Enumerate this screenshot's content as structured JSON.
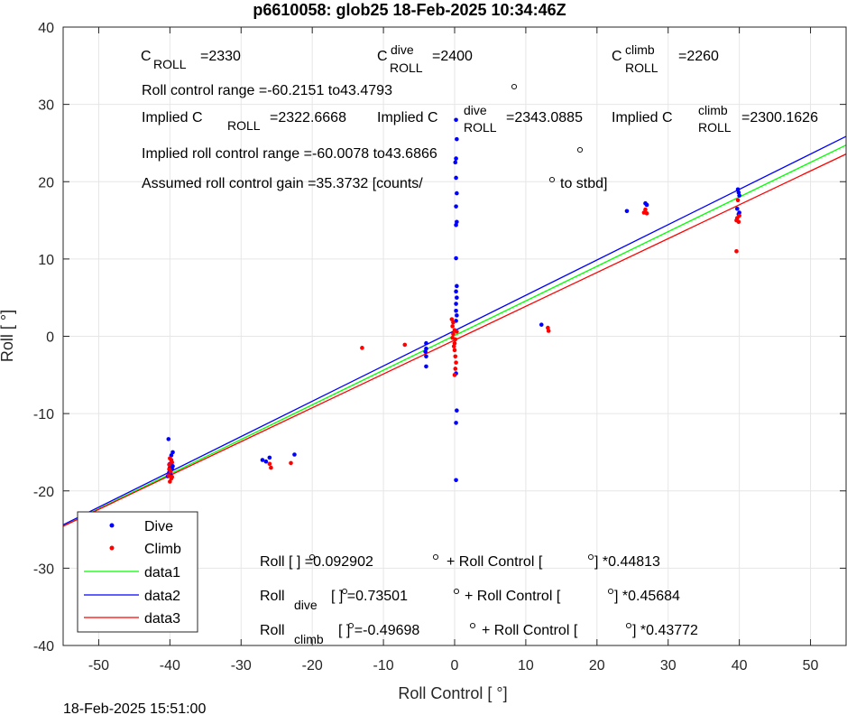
{
  "chart_data": {
    "type": "scatter",
    "title": "p6610058: glob25 18-Feb-2025 10:34:46Z",
    "xlabel": "Roll Control [   °]",
    "ylabel": "Roll [  °]",
    "xlim": [
      -55,
      55
    ],
    "ylim": [
      -40,
      40
    ],
    "xticks": [
      -50,
      -40,
      -30,
      -20,
      -10,
      0,
      10,
      20,
      30,
      40,
      50
    ],
    "yticks": [
      -40,
      -30,
      -20,
      -10,
      0,
      10,
      20,
      30,
      40
    ],
    "grid": true,
    "timestamp": "18-Feb-2025 15:51:00",
    "legend": {
      "placement": "bottom-left",
      "entries": [
        "Dive",
        "Climb",
        "data1",
        "data2",
        "data3"
      ]
    },
    "colors": {
      "dive": "#0000ff",
      "climb": "#ff0000",
      "data1": "#00ff00",
      "data2": "#0000ff",
      "data3": "#ff0000"
    },
    "series": [
      {
        "name": "Dive",
        "kind": "points",
        "color": "#0000ff",
        "points": [
          [
            -40.2,
            -13.3
          ],
          [
            -39.8,
            -15.4
          ],
          [
            -39.6,
            -15.0
          ],
          [
            -40.0,
            -16.5
          ],
          [
            -39.7,
            -17.2
          ],
          [
            -40.1,
            -17.6
          ],
          [
            -39.9,
            -17.9
          ],
          [
            -40.3,
            -18.1
          ],
          [
            -39.6,
            -16.8
          ],
          [
            -40.0,
            -17.0
          ],
          [
            -27.0,
            -16.0
          ],
          [
            -26.5,
            -16.2
          ],
          [
            -26.0,
            -15.7
          ],
          [
            -22.5,
            -15.3
          ],
          [
            -4.0,
            -0.9
          ],
          [
            -4.0,
            -1.6
          ],
          [
            -4.1,
            -2.0
          ],
          [
            -4.0,
            -2.6
          ],
          [
            -4.0,
            -3.9
          ],
          [
            0.2,
            28.0
          ],
          [
            0.3,
            25.5
          ],
          [
            0.2,
            23.0
          ],
          [
            0.1,
            22.5
          ],
          [
            0.2,
            20.5
          ],
          [
            0.3,
            18.5
          ],
          [
            0.2,
            16.8
          ],
          [
            0.3,
            14.8
          ],
          [
            0.2,
            14.4
          ],
          [
            0.2,
            10.1
          ],
          [
            0.3,
            6.5
          ],
          [
            0.2,
            5.8
          ],
          [
            0.3,
            5.0
          ],
          [
            0.2,
            4.2
          ],
          [
            0.2,
            3.3
          ],
          [
            0.3,
            2.7
          ],
          [
            0.2,
            2.0
          ],
          [
            0.2,
            -4.8
          ],
          [
            0.3,
            -9.6
          ],
          [
            0.2,
            -11.2
          ],
          [
            0.2,
            -18.6
          ],
          [
            12.2,
            1.5
          ],
          [
            24.2,
            16.2
          ],
          [
            26.8,
            17.2
          ],
          [
            27.0,
            17.0
          ],
          [
            39.8,
            19.0
          ],
          [
            39.9,
            18.6
          ],
          [
            40.0,
            18.2
          ],
          [
            39.7,
            16.5
          ],
          [
            40.0,
            16.0
          ],
          [
            39.9,
            15.8
          ]
        ]
      },
      {
        "name": "Climb",
        "kind": "points",
        "color": "#ff0000",
        "points": [
          [
            -40.0,
            -15.8
          ],
          [
            -39.8,
            -16.0
          ],
          [
            -39.7,
            -16.3
          ],
          [
            -40.1,
            -16.6
          ],
          [
            -39.9,
            -17.5
          ],
          [
            -40.2,
            -18.0
          ],
          [
            -39.8,
            -18.4
          ],
          [
            -40.0,
            -18.8
          ],
          [
            -39.7,
            -18.2
          ],
          [
            -40.1,
            -17.2
          ],
          [
            -26.0,
            -16.5
          ],
          [
            -25.8,
            -17.0
          ],
          [
            -23.0,
            -16.4
          ],
          [
            -13.0,
            -1.5
          ],
          [
            -7.0,
            -1.1
          ],
          [
            -0.4,
            2.2
          ],
          [
            -0.2,
            1.8
          ],
          [
            -0.3,
            1.3
          ],
          [
            0.0,
            0.8
          ],
          [
            -0.2,
            0.3
          ],
          [
            0.1,
            -0.4
          ],
          [
            0.0,
            -0.9
          ],
          [
            -0.1,
            -1.3
          ],
          [
            0.0,
            -1.8
          ],
          [
            0.1,
            -2.6
          ],
          [
            0.2,
            -3.4
          ],
          [
            0.1,
            -4.2
          ],
          [
            0.0,
            -5.0
          ],
          [
            -0.3,
            -0.2
          ],
          [
            0.3,
            0.6
          ],
          [
            13.2,
            0.7
          ],
          [
            13.1,
            1.1
          ],
          [
            26.6,
            16.0
          ],
          [
            27.0,
            15.9
          ],
          [
            26.8,
            16.4
          ],
          [
            39.6,
            15.0
          ],
          [
            39.9,
            14.8
          ],
          [
            39.7,
            15.3
          ],
          [
            40.0,
            15.6
          ],
          [
            39.8,
            17.6
          ],
          [
            39.6,
            11.0
          ]
        ]
      },
      {
        "name": "data1",
        "kind": "line",
        "color": "#00ff00",
        "intercept": 0.092902,
        "slope": 0.44813
      },
      {
        "name": "data2",
        "kind": "line",
        "color": "#0000ff",
        "intercept": 0.73501,
        "slope": 0.45684
      },
      {
        "name": "data3",
        "kind": "line",
        "color": "#ff0000",
        "intercept": -0.49698,
        "slope": 0.43772
      }
    ],
    "annotations": {
      "c_roll_base": "C",
      "c_roll_sub": "ROLL",
      "c_roll_val": "=2330",
      "c_dive_base": "C",
      "c_dive_sup": "dive",
      "c_dive_sub": "ROLL",
      "c_dive_val": "=2400",
      "c_climb_base": "C",
      "c_climb_sup": "climb",
      "c_climb_sub": "ROLL",
      "c_climb_val": "=2260",
      "range": "Roll control range =-60.2151 to43.4793",
      "implied_a": "Implied C",
      "implied_a_sub": "ROLL",
      "implied_a_val": "=2322.6668",
      "implied_b": "Implied C",
      "implied_b_sup": "dive",
      "implied_b_sub": "ROLL",
      "implied_b_val": "=2343.0885",
      "implied_c": "Implied C",
      "implied_c_sup": "climb",
      "implied_c_sub": "ROLL",
      "implied_c_val": "=2300.1626",
      "implied_range": "Implied roll control range =-60.0078 to43.6866",
      "gain_a": "Assumed roll control gain =35.3732 [counts/",
      "gain_b": "to stbd]",
      "eq1_a": "Roll [  ] =0.092902",
      "eq1_b": "+ Roll Control [",
      "eq1_c": "] *0.44813",
      "eq2_base": "Roll",
      "eq2_sub": "dive",
      "eq2_a": "[  ] =0.73501",
      "eq2_b": "+ Roll Control [",
      "eq2_c": "] *0.45684",
      "eq3_base": "Roll",
      "eq3_sub": "climb",
      "eq3_a": "[  ] =-0.49698",
      "eq3_b": "+ Roll Control [",
      "eq3_c": "] *0.43772"
    }
  }
}
